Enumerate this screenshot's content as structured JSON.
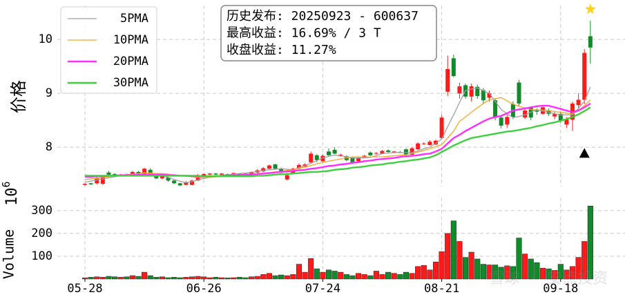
{
  "chart_data": {
    "type": "candlestick",
    "categories": [
      "05-28",
      null,
      null,
      null,
      null,
      null,
      null,
      null,
      null,
      null,
      null,
      null,
      null,
      null,
      null,
      null,
      null,
      null,
      null,
      null,
      "06-26",
      null,
      null,
      null,
      null,
      null,
      null,
      null,
      null,
      null,
      null,
      null,
      null,
      null,
      null,
      null,
      null,
      null,
      null,
      null,
      "07-24",
      null,
      null,
      null,
      null,
      null,
      null,
      null,
      null,
      null,
      null,
      null,
      null,
      null,
      null,
      null,
      null,
      null,
      null,
      null,
      "08-21",
      null,
      null,
      null,
      null,
      null,
      null,
      null,
      null,
      null,
      null,
      null,
      null,
      null,
      null,
      null,
      null,
      null,
      null,
      null,
      "09-18",
      null,
      null,
      null,
      null,
      null
    ],
    "open": [
      7.3,
      7.33,
      7.33,
      7.32,
      7.53,
      7.5,
      7.48,
      7.49,
      7.47,
      7.54,
      7.48,
      7.58,
      7.48,
      7.42,
      7.44,
      7.38,
      7.33,
      7.3,
      7.3,
      7.38,
      7.45,
      7.49,
      7.51,
      7.49,
      7.5,
      7.5,
      7.51,
      7.51,
      7.48,
      7.53,
      7.55,
      7.6,
      7.68,
      7.6,
      7.4,
      7.52,
      7.6,
      7.64,
      7.72,
      7.85,
      7.74,
      7.92,
      7.95,
      7.85,
      7.83,
      7.8,
      7.74,
      7.8,
      7.9,
      7.88,
      7.88,
      7.94,
      7.9,
      7.91,
      7.96,
      7.86,
      7.96,
      8.06,
      8.04,
      8.05,
      8.17,
      9.03,
      9.65,
      9.0,
      9.15,
      8.94,
      9.12,
      9.06,
      8.92,
      8.87,
      8.55,
      8.42,
      8.8,
      9.2,
      8.55,
      8.74,
      8.68,
      8.62,
      8.68,
      8.57,
      8.62,
      8.42,
      8.51,
      8.78,
      8.88,
      10.06
    ],
    "high": [
      7.33,
      7.34,
      7.46,
      7.48,
      7.56,
      7.52,
      7.5,
      7.51,
      7.56,
      7.56,
      7.62,
      7.61,
      7.5,
      7.47,
      7.45,
      7.4,
      7.34,
      7.37,
      7.4,
      7.5,
      7.52,
      7.52,
      7.52,
      7.52,
      7.51,
      7.53,
      7.52,
      7.52,
      7.55,
      7.59,
      7.63,
      7.68,
      7.69,
      7.62,
      7.52,
      7.62,
      7.7,
      7.7,
      7.92,
      7.87,
      7.87,
      7.98,
      8.0,
      7.88,
      7.85,
      7.82,
      7.82,
      7.86,
      7.92,
      7.91,
      7.95,
      7.96,
      7.93,
      7.93,
      7.98,
      8.0,
      8.09,
      8.09,
      8.13,
      8.14,
      8.6,
      9.7,
      9.72,
      9.2,
      9.18,
      9.18,
      9.16,
      9.1,
      9.05,
      8.9,
      8.6,
      8.6,
      8.85,
      9.25,
      8.72,
      8.76,
      8.72,
      8.76,
      8.72,
      8.66,
      8.66,
      8.56,
      8.85,
      9.0,
      9.82,
      10.35
    ],
    "low": [
      7.28,
      7.3,
      7.31,
      7.3,
      7.47,
      7.46,
      7.46,
      7.47,
      7.46,
      7.5,
      7.47,
      7.47,
      7.41,
      7.4,
      7.36,
      7.31,
      7.28,
      7.29,
      7.29,
      7.37,
      7.43,
      7.48,
      7.48,
      7.48,
      7.48,
      7.49,
      7.48,
      7.48,
      7.47,
      7.52,
      7.54,
      7.59,
      7.59,
      7.52,
      7.38,
      7.51,
      7.59,
      7.63,
      7.7,
      7.72,
      7.72,
      7.84,
      7.87,
      7.82,
      7.74,
      7.7,
      7.73,
      7.79,
      7.84,
      7.86,
      7.87,
      7.9,
      7.89,
      7.89,
      7.83,
      7.85,
      7.95,
      8.04,
      8.03,
      8.04,
      8.15,
      8.95,
      9.3,
      8.9,
      8.9,
      8.85,
      8.9,
      8.8,
      8.85,
      8.5,
      8.35,
      8.36,
      8.52,
      8.75,
      8.52,
      8.5,
      8.6,
      8.6,
      8.58,
      8.52,
      8.45,
      8.36,
      8.3,
      8.7,
      8.8,
      9.55
    ],
    "close": [
      7.32,
      7.31,
      7.43,
      7.45,
      7.49,
      7.48,
      7.49,
      7.48,
      7.54,
      7.51,
      7.6,
      7.48,
      7.42,
      7.46,
      7.38,
      7.33,
      7.29,
      7.35,
      7.38,
      7.47,
      7.5,
      7.51,
      7.49,
      7.51,
      7.49,
      7.52,
      7.49,
      7.5,
      7.54,
      7.57,
      7.61,
      7.66,
      7.6,
      7.53,
      7.48,
      7.6,
      7.67,
      7.68,
      7.88,
      7.76,
      7.84,
      7.85,
      7.88,
      7.86,
      7.76,
      7.72,
      7.8,
      7.84,
      7.85,
      7.89,
      7.93,
      7.91,
      7.92,
      7.9,
      7.86,
      7.98,
      8.07,
      8.07,
      8.1,
      8.12,
      8.55,
      9.45,
      9.32,
      9.13,
      8.94,
      9.13,
      8.95,
      8.87,
      9.0,
      8.55,
      8.4,
      8.56,
      8.56,
      8.81,
      8.68,
      8.55,
      8.66,
      8.74,
      8.62,
      8.62,
      8.49,
      8.52,
      8.81,
      8.88,
      9.75,
      9.85
    ],
    "up_color": "#ff1a1a",
    "down_color": "#128a2a",
    "series": [
      {
        "name": "5PMA",
        "color": "#a0a0a0",
        "values": [
          7.35,
          7.37,
          7.39,
          7.41,
          7.43,
          7.45,
          7.47,
          7.48,
          7.5,
          7.51,
          7.53,
          7.51,
          7.49,
          7.47,
          7.44,
          7.4,
          7.37,
          7.34,
          7.36,
          7.39,
          7.42,
          7.44,
          7.46,
          7.48,
          7.49,
          7.5,
          7.51,
          7.52,
          7.53,
          7.55,
          7.57,
          7.58,
          7.59,
          7.6,
          7.59,
          7.58,
          7.62,
          7.66,
          7.7,
          7.75,
          7.8,
          7.83,
          7.85,
          7.84,
          7.82,
          7.8,
          7.8,
          7.8,
          7.81,
          7.84,
          7.88,
          7.89,
          7.9,
          7.9,
          7.9,
          7.9,
          7.93,
          7.97,
          8.0,
          8.07,
          8.15,
          8.38,
          8.6,
          8.83,
          9.05,
          9.08,
          9.1,
          9.05,
          9.0,
          8.85,
          8.7,
          8.62,
          8.55,
          8.57,
          8.6,
          8.65,
          8.7,
          8.67,
          8.65,
          8.62,
          8.6,
          8.6,
          8.6,
          8.72,
          8.85,
          9.12
        ]
      },
      {
        "name": "10PMA",
        "color": "#f5a623",
        "values": [
          7.4,
          7.41,
          7.42,
          7.44,
          7.45,
          7.47,
          7.48,
          7.49,
          7.5,
          7.51,
          7.52,
          7.52,
          7.51,
          7.51,
          7.5,
          7.48,
          7.47,
          7.46,
          7.45,
          7.44,
          7.43,
          7.44,
          7.45,
          7.46,
          7.47,
          7.48,
          7.49,
          7.5,
          7.5,
          7.51,
          7.52,
          7.53,
          7.54,
          7.55,
          7.57,
          7.58,
          7.61,
          7.63,
          7.66,
          7.69,
          7.72,
          7.74,
          7.76,
          7.78,
          7.8,
          7.82,
          7.82,
          7.82,
          7.82,
          7.82,
          7.82,
          7.83,
          7.84,
          7.85,
          7.86,
          7.88,
          7.91,
          7.94,
          7.97,
          8.01,
          8.05,
          8.17,
          8.3,
          8.48,
          8.56,
          8.65,
          8.73,
          8.81,
          8.88,
          8.9,
          8.92,
          8.86,
          8.8,
          8.76,
          8.73,
          8.7,
          8.69,
          8.69,
          8.68,
          8.66,
          8.65,
          8.63,
          8.62,
          8.68,
          8.77,
          8.88
        ]
      },
      {
        "name": "20PMA",
        "color": "#ff2cff",
        "values": [
          7.45,
          7.45,
          7.46,
          7.46,
          7.47,
          7.47,
          7.48,
          7.48,
          7.48,
          7.49,
          7.49,
          7.49,
          7.49,
          7.49,
          7.48,
          7.48,
          7.47,
          7.47,
          7.46,
          7.46,
          7.46,
          7.46,
          7.46,
          7.47,
          7.47,
          7.48,
          7.48,
          7.49,
          7.49,
          7.5,
          7.51,
          7.52,
          7.53,
          7.54,
          7.55,
          7.56,
          7.57,
          7.58,
          7.6,
          7.61,
          7.63,
          7.65,
          7.66,
          7.68,
          7.69,
          7.71,
          7.72,
          7.74,
          7.75,
          7.77,
          7.78,
          7.79,
          7.8,
          7.82,
          7.83,
          7.84,
          7.85,
          7.87,
          7.88,
          7.92,
          7.97,
          8.07,
          8.17,
          8.23,
          8.3,
          8.36,
          8.42,
          8.48,
          8.53,
          8.56,
          8.58,
          8.63,
          8.68,
          8.7,
          8.72,
          8.74,
          8.76,
          8.77,
          8.77,
          8.74,
          8.71,
          8.68,
          8.65,
          8.68,
          8.74,
          8.81
        ]
      },
      {
        "name": "30PMA",
        "color": "#3ecf3e",
        "values": [
          7.47,
          7.47,
          7.47,
          7.47,
          7.47,
          7.47,
          7.47,
          7.47,
          7.47,
          7.47,
          7.47,
          7.47,
          7.47,
          7.47,
          7.47,
          7.47,
          7.47,
          7.47,
          7.47,
          7.47,
          7.46,
          7.46,
          7.46,
          7.46,
          7.46,
          7.46,
          7.46,
          7.46,
          7.46,
          7.47,
          7.47,
          7.48,
          7.49,
          7.5,
          7.5,
          7.51,
          7.52,
          7.53,
          7.54,
          7.54,
          7.55,
          7.56,
          7.58,
          7.59,
          7.6,
          7.62,
          7.63,
          7.64,
          7.66,
          7.67,
          7.68,
          7.7,
          7.71,
          7.73,
          7.74,
          7.76,
          7.77,
          7.79,
          7.81,
          7.85,
          7.91,
          7.97,
          8.03,
          8.08,
          8.13,
          8.17,
          8.19,
          8.21,
          8.23,
          8.25,
          8.27,
          8.29,
          8.3,
          8.32,
          8.34,
          8.36,
          8.39,
          8.41,
          8.44,
          8.46,
          8.49,
          8.52,
          8.56,
          8.61,
          8.67,
          8.74
        ]
      }
    ],
    "legend": "upper left",
    "ylabel": "价格",
    "ylim": [
      7.27,
      10.63
    ],
    "yticks": [
      8,
      9,
      10
    ],
    "grid": true,
    "info_lines": [
      "历史发布: 20250923 - 600637",
      "最高收益: 16.69% / 3 T",
      "收盘收益: 11.27%"
    ],
    "star_marker": {
      "color": "#ffd21f",
      "values": [
        null,
        null,
        null,
        null,
        null,
        null,
        null,
        null,
        null,
        null,
        null,
        null,
        null,
        null,
        null,
        null,
        null,
        null,
        null,
        null,
        null,
        null,
        null,
        null,
        null,
        null,
        null,
        null,
        null,
        null,
        null,
        null,
        null,
        null,
        null,
        null,
        null,
        null,
        null,
        null,
        null,
        null,
        null,
        null,
        null,
        null,
        null,
        null,
        null,
        null,
        null,
        null,
        null,
        null,
        null,
        null,
        null,
        null,
        null,
        null,
        null,
        null,
        null,
        null,
        null,
        null,
        null,
        null,
        null,
        null,
        null,
        null,
        null,
        null,
        null,
        null,
        null,
        null,
        null,
        null,
        null,
        null,
        null,
        null,
        null,
        10.56
      ]
    },
    "triangle_marker": {
      "color": "#000000",
      "values": [
        null,
        null,
        null,
        null,
        null,
        null,
        null,
        null,
        null,
        null,
        null,
        null,
        null,
        null,
        null,
        null,
        null,
        null,
        null,
        null,
        null,
        null,
        null,
        null,
        null,
        null,
        null,
        null,
        null,
        null,
        null,
        null,
        null,
        null,
        null,
        null,
        null,
        null,
        null,
        null,
        null,
        null,
        null,
        null,
        null,
        null,
        null,
        null,
        null,
        null,
        null,
        null,
        null,
        null,
        null,
        null,
        null,
        null,
        null,
        null,
        null,
        null,
        null,
        null,
        null,
        null,
        null,
        null,
        null,
        null,
        null,
        null,
        null,
        null,
        null,
        null,
        null,
        null,
        null,
        null,
        null,
        null,
        null,
        null,
        7.88,
        null
      ]
    },
    "volume": {
      "ylabel": "Volume",
      "offset_label": {
        "base": "10",
        "exponent": "6"
      },
      "ylim": [
        0,
        345
      ],
      "yticks": [
        100,
        200,
        300
      ],
      "values": [
        5,
        8,
        10,
        8,
        12,
        10,
        8,
        10,
        15,
        12,
        30,
        15,
        8,
        10,
        6,
        8,
        6,
        8,
        10,
        12,
        10,
        6,
        8,
        6,
        5,
        6,
        8,
        6,
        10,
        12,
        20,
        25,
        15,
        18,
        15,
        20,
        65,
        30,
        90,
        45,
        30,
        40,
        35,
        30,
        20,
        15,
        25,
        20,
        15,
        35,
        20,
        30,
        25,
        20,
        30,
        25,
        55,
        60,
        40,
        75,
        120,
        200,
        255,
        165,
        95,
        118,
        88,
        65,
        62,
        62,
        52,
        58,
        55,
        180,
        110,
        88,
        72,
        48,
        45,
        38,
        65,
        40,
        55,
        95,
        165,
        320
      ]
    },
    "watermark": "雪球 · 安点投资"
  }
}
